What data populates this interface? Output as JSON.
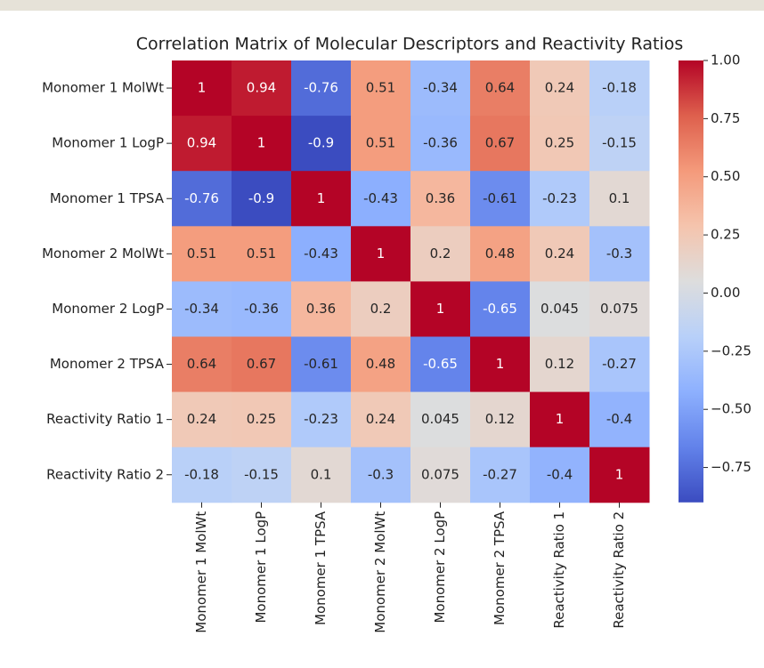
{
  "chart_data": {
    "type": "heatmap",
    "title": "Correlation Matrix of Molecular Descriptors and Reactivity Ratios",
    "categories": [
      "Monomer 1 MolWt",
      "Monomer 1 LogP",
      "Monomer 1 TPSA",
      "Monomer 2 MolWt",
      "Monomer 2 LogP",
      "Monomer 2 TPSA",
      "Reactivity Ratio 1",
      "Reactivity Ratio 2"
    ],
    "values": [
      [
        1,
        0.94,
        -0.76,
        0.51,
        -0.34,
        0.64,
        0.24,
        -0.18
      ],
      [
        0.94,
        1,
        -0.9,
        0.51,
        -0.36,
        0.67,
        0.25,
        -0.15
      ],
      [
        -0.76,
        -0.9,
        1,
        -0.43,
        0.36,
        -0.61,
        -0.23,
        0.1
      ],
      [
        0.51,
        0.51,
        -0.43,
        1,
        0.2,
        0.48,
        0.24,
        -0.3
      ],
      [
        -0.34,
        -0.36,
        0.36,
        0.2,
        1,
        -0.65,
        0.045,
        0.075
      ],
      [
        0.64,
        0.67,
        -0.61,
        0.48,
        -0.65,
        1,
        0.12,
        -0.27
      ],
      [
        0.24,
        0.25,
        -0.23,
        0.24,
        0.045,
        0.12,
        1,
        -0.4
      ],
      [
        -0.18,
        -0.15,
        0.1,
        -0.3,
        0.075,
        -0.27,
        -0.4,
        1
      ]
    ],
    "colormap": "coolwarm",
    "clim": [
      -0.9,
      1
    ],
    "cticks": [
      {
        "value": 1,
        "label": "1.00"
      },
      {
        "value": 0.75,
        "label": "0.75"
      },
      {
        "value": 0.5,
        "label": "0.50"
      },
      {
        "value": 0.25,
        "label": "0.25"
      },
      {
        "value": 0,
        "label": "0.00"
      },
      {
        "value": -0.25,
        "label": "−0.25"
      },
      {
        "value": -0.5,
        "label": "−0.50"
      },
      {
        "value": -0.75,
        "label": "−0.75"
      }
    ]
  }
}
